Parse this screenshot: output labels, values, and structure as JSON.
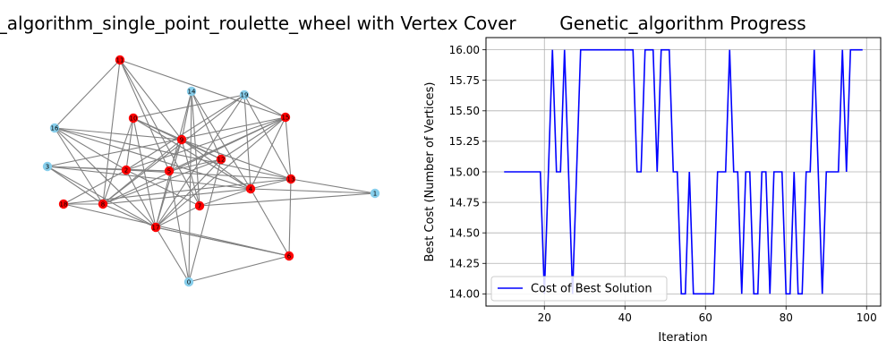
{
  "chart_data": [
    {
      "type": "network",
      "title": "genetic_algorithm_single_point_roulette_wheel with Vertex Cover",
      "colors": {
        "in_cover": "#ff0000",
        "not_in_cover": "#87ceeb",
        "edge": "#808080"
      },
      "nodes": [
        {
          "id": "0",
          "in_cover": false
        },
        {
          "id": "1",
          "in_cover": false
        },
        {
          "id": "2",
          "in_cover": true
        },
        {
          "id": "3",
          "in_cover": false
        },
        {
          "id": "4",
          "in_cover": true
        },
        {
          "id": "5",
          "in_cover": true
        },
        {
          "id": "6",
          "in_cover": true
        },
        {
          "id": "7",
          "in_cover": true
        },
        {
          "id": "8",
          "in_cover": true
        },
        {
          "id": "9",
          "in_cover": true
        },
        {
          "id": "10",
          "in_cover": true
        },
        {
          "id": "11",
          "in_cover": true
        },
        {
          "id": "12",
          "in_cover": true
        },
        {
          "id": "13",
          "in_cover": true
        },
        {
          "id": "14",
          "in_cover": false
        },
        {
          "id": "15",
          "in_cover": true
        },
        {
          "id": "16",
          "in_cover": false
        },
        {
          "id": "17",
          "in_cover": true
        },
        {
          "id": "18",
          "in_cover": true
        },
        {
          "id": "19",
          "in_cover": false
        }
      ],
      "edges": [
        [
          "11",
          "16"
        ],
        [
          "11",
          "8"
        ],
        [
          "11",
          "7"
        ],
        [
          "11",
          "15"
        ],
        [
          "11",
          "5"
        ],
        [
          "11",
          "9"
        ],
        [
          "14",
          "17"
        ],
        [
          "14",
          "12"
        ],
        [
          "14",
          "7"
        ],
        [
          "14",
          "9"
        ],
        [
          "14",
          "4"
        ],
        [
          "14",
          "0"
        ],
        [
          "19",
          "10"
        ],
        [
          "19",
          "15"
        ],
        [
          "19",
          "17"
        ],
        [
          "19",
          "2"
        ],
        [
          "19",
          "8"
        ],
        [
          "19",
          "4"
        ],
        [
          "19",
          "13"
        ],
        [
          "18",
          "2"
        ],
        [
          "18",
          "6"
        ],
        [
          "18",
          "8"
        ],
        [
          "18",
          "13"
        ],
        [
          "16",
          "2"
        ],
        [
          "16",
          "4"
        ],
        [
          "16",
          "8"
        ],
        [
          "16",
          "17"
        ],
        [
          "16",
          "9"
        ],
        [
          "16",
          "13"
        ],
        [
          "3",
          "2"
        ],
        [
          "3",
          "17"
        ],
        [
          "3",
          "15"
        ],
        [
          "3",
          "4"
        ],
        [
          "3",
          "8"
        ],
        [
          "3",
          "5"
        ],
        [
          "5",
          "2"
        ],
        [
          "5",
          "12"
        ],
        [
          "5",
          "9"
        ],
        [
          "5",
          "15"
        ],
        [
          "5",
          "0"
        ],
        [
          "10",
          "12"
        ],
        [
          "10",
          "9"
        ],
        [
          "10",
          "8"
        ],
        [
          "10",
          "17"
        ],
        [
          "10",
          "2"
        ],
        [
          "10",
          "4"
        ],
        [
          "9",
          "12"
        ],
        [
          "9",
          "8"
        ],
        [
          "9",
          "17"
        ],
        [
          "9",
          "13"
        ],
        [
          "9",
          "4"
        ],
        [
          "9",
          "7"
        ],
        [
          "12",
          "8"
        ],
        [
          "12",
          "15"
        ],
        [
          "12",
          "17"
        ],
        [
          "12",
          "0"
        ],
        [
          "15",
          "8"
        ],
        [
          "15",
          "4"
        ],
        [
          "15",
          "2"
        ],
        [
          "15",
          "17"
        ],
        [
          "15",
          "13"
        ],
        [
          "8",
          "17"
        ],
        [
          "8",
          "4"
        ],
        [
          "17",
          "7"
        ],
        [
          "17",
          "2"
        ],
        [
          "17",
          "6"
        ],
        [
          "7",
          "2"
        ],
        [
          "7",
          "4"
        ],
        [
          "7",
          "1"
        ],
        [
          "4",
          "13"
        ],
        [
          "4",
          "6"
        ],
        [
          "4",
          "1"
        ],
        [
          "13",
          "1"
        ],
        [
          "13",
          "6"
        ],
        [
          "6",
          "0"
        ],
        [
          "6",
          "17"
        ],
        [
          "0",
          "17"
        ],
        [
          "2",
          "13"
        ]
      ]
    },
    {
      "type": "line",
      "title": "Genetic_algorithm Progress",
      "xlabel": "Iteration",
      "ylabel": "Best Cost (Number of Vertices)",
      "xlim": [
        5.5,
        103.5
      ],
      "ylim": [
        13.9,
        16.1
      ],
      "xticks": [
        20,
        40,
        60,
        80,
        100
      ],
      "yticks": [
        14.0,
        14.25,
        14.5,
        14.75,
        15.0,
        15.25,
        15.5,
        15.75,
        16.0
      ],
      "ytick_labels": [
        "14.00",
        "14.25",
        "14.50",
        "14.75",
        "15.00",
        "15.25",
        "15.50",
        "15.75",
        "16.00"
      ],
      "grid": true,
      "legend": {
        "position": "lower-left"
      },
      "series": [
        {
          "name": "Cost of Best Solution",
          "color": "#0000ff",
          "x": [
            10,
            11,
            12,
            13,
            14,
            15,
            16,
            17,
            18,
            19,
            20,
            21,
            22,
            23,
            24,
            25,
            26,
            27,
            28,
            29,
            30,
            31,
            32,
            33,
            34,
            35,
            36,
            37,
            38,
            39,
            40,
            41,
            42,
            43,
            44,
            45,
            46,
            47,
            48,
            49,
            50,
            51,
            52,
            53,
            54,
            55,
            56,
            57,
            58,
            59,
            60,
            61,
            62,
            63,
            64,
            65,
            66,
            67,
            68,
            69,
            70,
            71,
            72,
            73,
            74,
            75,
            76,
            77,
            78,
            79,
            80,
            81,
            82,
            83,
            84,
            85,
            86,
            87,
            88,
            89,
            90,
            91,
            92,
            93,
            94,
            95,
            96,
            97,
            98,
            99
          ],
          "y": [
            15,
            15,
            15,
            15,
            15,
            15,
            15,
            15,
            15,
            15,
            14,
            15,
            16,
            15,
            15,
            16,
            15,
            14,
            15,
            16,
            16,
            16,
            16,
            16,
            16,
            16,
            16,
            16,
            16,
            16,
            16,
            16,
            16,
            15,
            15,
            16,
            16,
            16,
            15,
            16,
            16,
            16,
            15,
            15,
            14,
            14,
            15,
            14,
            14,
            14,
            14,
            14,
            14,
            15,
            15,
            15,
            16,
            15,
            15,
            14,
            15,
            15,
            14,
            14,
            15,
            15,
            14,
            15,
            15,
            15,
            14,
            14,
            15,
            14,
            14,
            15,
            15,
            16,
            15,
            14,
            15,
            15,
            15,
            15,
            16,
            15,
            16,
            16,
            16,
            16
          ]
        }
      ]
    }
  ]
}
